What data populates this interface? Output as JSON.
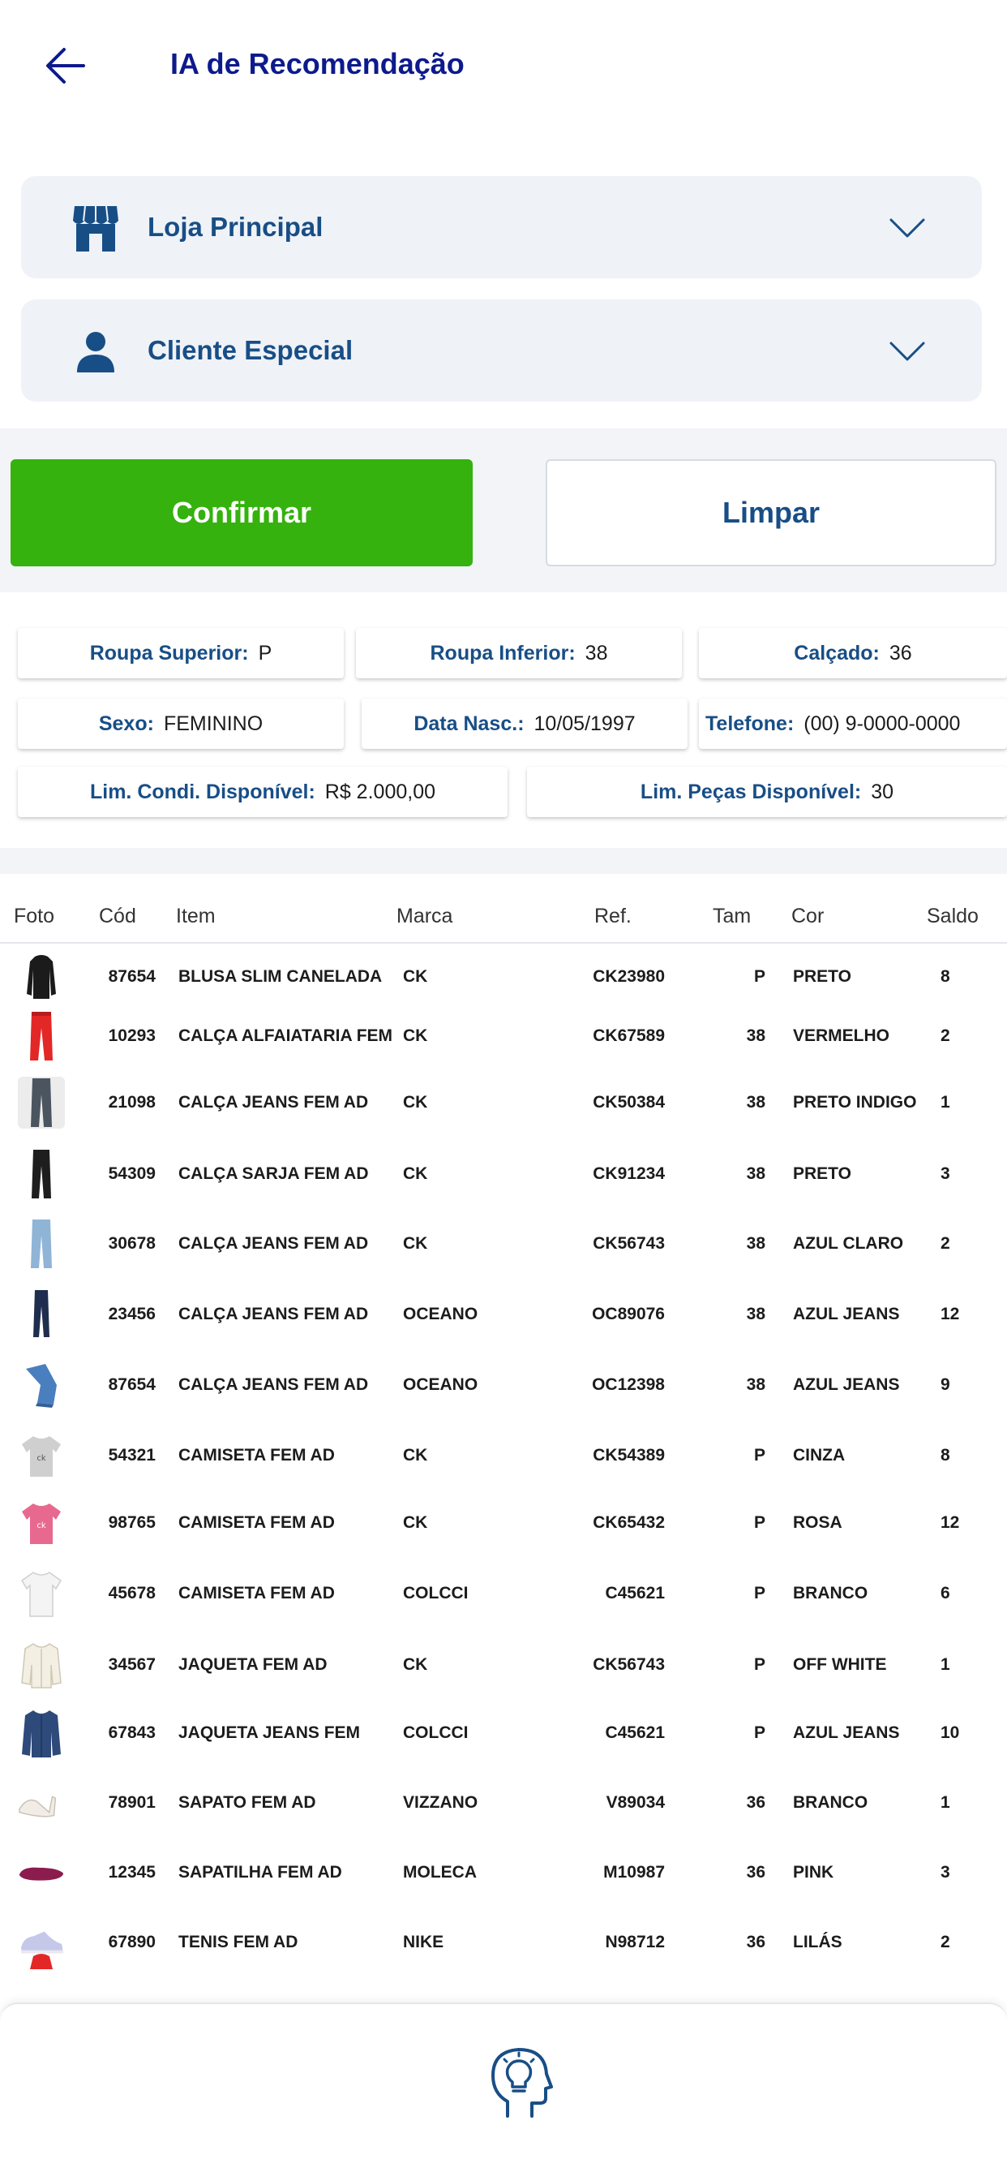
{
  "header": {
    "title": "IA de Recomendação"
  },
  "selects": {
    "store": {
      "label": "Loja Principal"
    },
    "client": {
      "label": "Cliente Especial"
    }
  },
  "actions": {
    "confirm_label": "Confirmar",
    "clear_label": "Limpar"
  },
  "profile": {
    "top": {
      "label": "Roupa Superior:",
      "value": "P"
    },
    "bottom": {
      "label": "Roupa Inferior:",
      "value": "38"
    },
    "shoe": {
      "label": "Calçado:",
      "value": "36"
    },
    "sex": {
      "label": "Sexo:",
      "value": "FEMININO"
    },
    "birth": {
      "label": "Data Nasc.:",
      "value": "10/05/1997"
    },
    "phone": {
      "label": "Telefone:",
      "value": "(00) 9-0000-0000"
    },
    "credit": {
      "label": "Lim. Condi. Disponível:",
      "value": "R$ 2.000,00"
    },
    "pieces": {
      "label": "Lim. Peças Disponível:",
      "value": "30"
    }
  },
  "table": {
    "columns": [
      "Foto",
      "Cód",
      "Item",
      "Marca",
      "Ref.",
      "Tam",
      "Cor",
      "Saldo"
    ],
    "rows": [
      {
        "code": "87654",
        "item": "BLUSA SLIM CANELADA",
        "brand": "CK",
        "ref": "CK23980",
        "size": "P",
        "color": "PRETO",
        "stock": "8",
        "photo": "black-blouse"
      },
      {
        "code": "10293",
        "item": "CALÇA ALFAIATARIA FEM",
        "brand": "CK",
        "ref": "CK67589",
        "size": "38",
        "color": "VERMELHO",
        "stock": "2",
        "photo": "red-pants"
      },
      {
        "code": "21098",
        "item": "CALÇA JEANS FEM AD",
        "brand": "CK",
        "ref": "CK50384",
        "size": "38",
        "color": "PRETO INDIGO",
        "stock": "1",
        "photo": "dark-jeans"
      },
      {
        "code": "54309",
        "item": "CALÇA SARJA FEM AD",
        "brand": "CK",
        "ref": "CK91234",
        "size": "38",
        "color": "PRETO",
        "stock": "3",
        "photo": "black-pants"
      },
      {
        "code": "30678",
        "item": "CALÇA JEANS FEM AD",
        "brand": "CK",
        "ref": "CK56743",
        "size": "38",
        "color": "AZUL CLARO",
        "stock": "2",
        "photo": "light-jeans"
      },
      {
        "code": "23456",
        "item": "CALÇA JEANS FEM AD",
        "brand": "OCEANO",
        "ref": "OC89076",
        "size": "38",
        "color": "AZUL JEANS",
        "stock": "12",
        "photo": "navy-jeans"
      },
      {
        "code": "87654",
        "item": "CALÇA JEANS FEM AD",
        "brand": "OCEANO",
        "ref": "OC12398",
        "size": "38",
        "color": "AZUL JEANS",
        "stock": "9",
        "photo": "folded-jeans"
      },
      {
        "code": "54321",
        "item": "CAMISETA FEM AD",
        "brand": "CK",
        "ref": "CK54389",
        "size": "P",
        "color": "CINZA",
        "stock": "8",
        "photo": "grey-tshirt"
      },
      {
        "code": "98765",
        "item": "CAMISETA FEM AD",
        "brand": "CK",
        "ref": "CK65432",
        "size": "P",
        "color": "ROSA",
        "stock": "12",
        "photo": "pink-tshirt"
      },
      {
        "code": "45678",
        "item": "CAMISETA FEM AD",
        "brand": "COLCCI",
        "ref": "C45621",
        "size": "P",
        "color": "BRANCO",
        "stock": "6",
        "photo": "white-tshirt"
      },
      {
        "code": "34567",
        "item": "JAQUETA FEM AD",
        "brand": "CK",
        "ref": "CK56743",
        "size": "P",
        "color": "OFF WHITE",
        "stock": "1",
        "photo": "white-jacket"
      },
      {
        "code": "67843",
        "item": "JAQUETA JEANS FEM",
        "brand": "COLCCI",
        "ref": "C45621",
        "size": "P",
        "color": "AZUL JEANS",
        "stock": "10",
        "photo": "denim-jacket"
      },
      {
        "code": "78901",
        "item": "SAPATO FEM AD",
        "brand": "VIZZANO",
        "ref": "V89034",
        "size": "36",
        "color": "BRANCO",
        "stock": "1",
        "photo": "white-heels"
      },
      {
        "code": "12345",
        "item": "SAPATILHA FEM AD",
        "brand": "MOLECA",
        "ref": "M10987",
        "size": "36",
        "color": "PINK",
        "stock": "3",
        "photo": "pink-flats"
      },
      {
        "code": "67890",
        "item": "TENIS FEM AD",
        "brand": "NIKE",
        "ref": "N98712",
        "size": "36",
        "color": "LILÁS",
        "stock": "2",
        "photo": "lilac-sneaker"
      }
    ]
  },
  "bottom": {
    "icon": "ai-head-lightbulb-icon"
  },
  "colors": {
    "primary": "#184e86",
    "title": "#0d1a8c",
    "confirm": "#35b20d",
    "background": "#f2f4f7"
  }
}
